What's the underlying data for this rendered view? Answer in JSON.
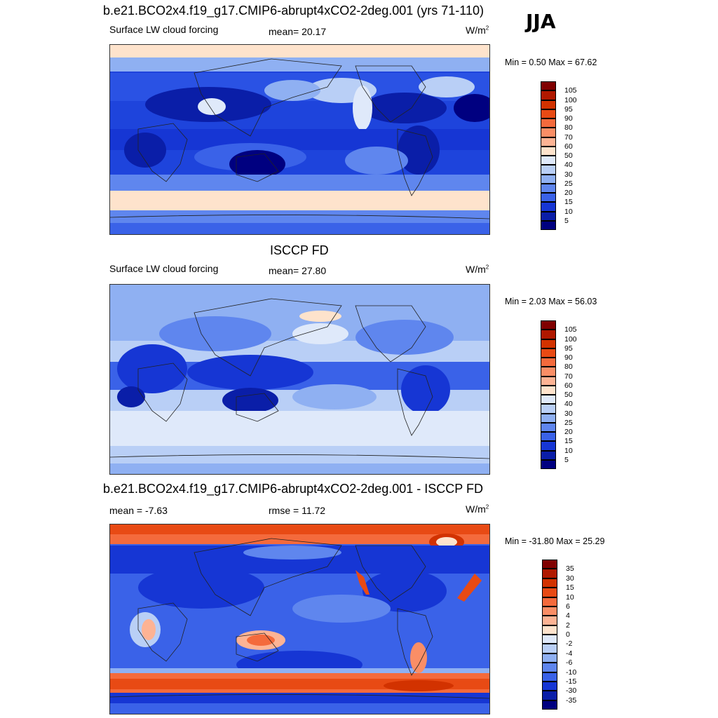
{
  "season": "JJA",
  "panels": [
    {
      "title": "b.e21.BCO2x4.f19_g17.CMIP6-abrupt4xCO2-2deg.001 (yrs 71-110)",
      "left_label": "Surface LW cloud forcing",
      "center_label": "mean=  20.17",
      "units": "W/m",
      "units_sup": "2",
      "minmax": "Min =   0.50 Max =  67.62"
    },
    {
      "title": "ISCCP FD",
      "left_label": "Surface LW cloud forcing",
      "center_label": "mean=  27.80",
      "units": "W/m",
      "units_sup": "2",
      "minmax": "Min =   2.03 Max =  56.03"
    },
    {
      "title": "b.e21.BCO2x4.f19_g17.CMIP6-abrupt4xCO2-2deg.001 - ISCCP FD",
      "left_label": "mean =  -7.63",
      "center_label": "rmse =  11.72",
      "units": "W/m",
      "units_sup": "2",
      "minmax": "Min = -31.80 Max =  25.29"
    }
  ],
  "colorbars": {
    "absolute": {
      "labels": [
        "105",
        "100",
        "95",
        "90",
        "80",
        "70",
        "60",
        "50",
        "40",
        "30",
        "25",
        "20",
        "15",
        "10",
        "5"
      ],
      "colors": [
        "#800000",
        "#b01800",
        "#d23200",
        "#e84a14",
        "#f46a3c",
        "#fa8e66",
        "#fdb394",
        "#fee3cc",
        "#dfe9fa",
        "#b9cff6",
        "#8fb0f2",
        "#5f86ee",
        "#3a62e8",
        "#1636d4",
        "#0a1ea8",
        "#000080"
      ]
    },
    "difference": {
      "labels": [
        "35",
        "30",
        "15",
        "10",
        "6",
        "4",
        "2",
        "0",
        "-2",
        "-4",
        "-6",
        "-10",
        "-15",
        "-30",
        "-35"
      ],
      "colors": [
        "#800000",
        "#b01800",
        "#d23200",
        "#e84a14",
        "#f46a3c",
        "#fa8e66",
        "#fdb394",
        "#fee3cc",
        "#dfe9fa",
        "#b9cff6",
        "#8fb0f2",
        "#5f86ee",
        "#3a62e8",
        "#1636d4",
        "#0a1ea8",
        "#000080"
      ]
    }
  }
}
